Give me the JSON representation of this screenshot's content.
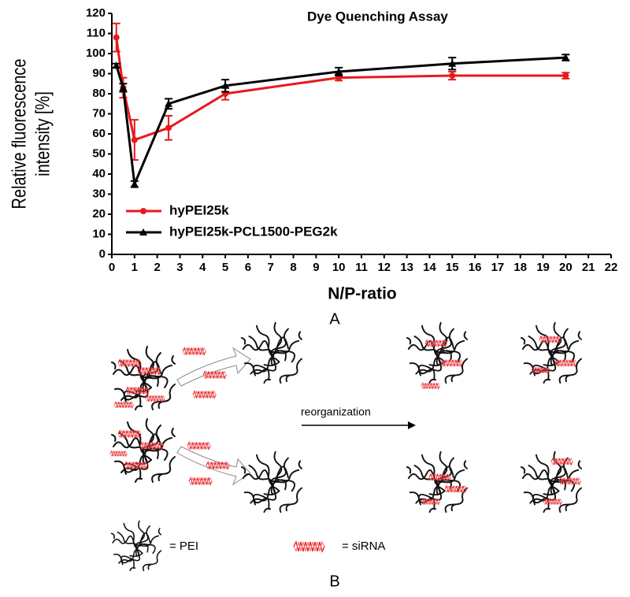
{
  "chart_data": {
    "type": "line",
    "title": "Dye Quenching Assay",
    "xlabel": "N/P-ratio",
    "ylabel": [
      "Relative fluorescence",
      "intensity [%]"
    ],
    "panel_label": "A",
    "x": [
      0.2,
      0.5,
      1,
      2.5,
      5,
      10,
      15,
      20
    ],
    "series": [
      {
        "name": "hyPEI25k",
        "color": "#e8191e",
        "marker": "circle",
        "values": [
          108,
          83,
          57,
          63,
          80,
          88,
          89,
          89
        ],
        "errors": [
          7,
          5,
          10,
          6,
          3,
          1.5,
          2,
          1.5
        ]
      },
      {
        "name": "hyPEI25k-PCL1500-PEG2k",
        "color": "#000000",
        "marker": "triangle",
        "values": [
          94,
          83,
          35,
          75,
          84,
          91,
          95,
          98
        ],
        "errors": [
          1,
          2,
          1.5,
          2.5,
          3,
          2,
          3,
          1.5
        ]
      }
    ],
    "xlim": [
      0,
      22
    ],
    "xticks": [
      0,
      1,
      2,
      3,
      4,
      5,
      6,
      7,
      8,
      9,
      10,
      11,
      12,
      13,
      14,
      15,
      16,
      17,
      18,
      19,
      20,
      21,
      22
    ],
    "ylim": [
      0,
      120
    ],
    "yticks": [
      0,
      10,
      20,
      30,
      40,
      50,
      60,
      70,
      80,
      90,
      100,
      110,
      120
    ],
    "grid": false,
    "legend": "left"
  },
  "diagram": {
    "panel_label": "B",
    "arrow_label": "reorganization",
    "legend": [
      "= PEI",
      "= siRNA"
    ]
  }
}
